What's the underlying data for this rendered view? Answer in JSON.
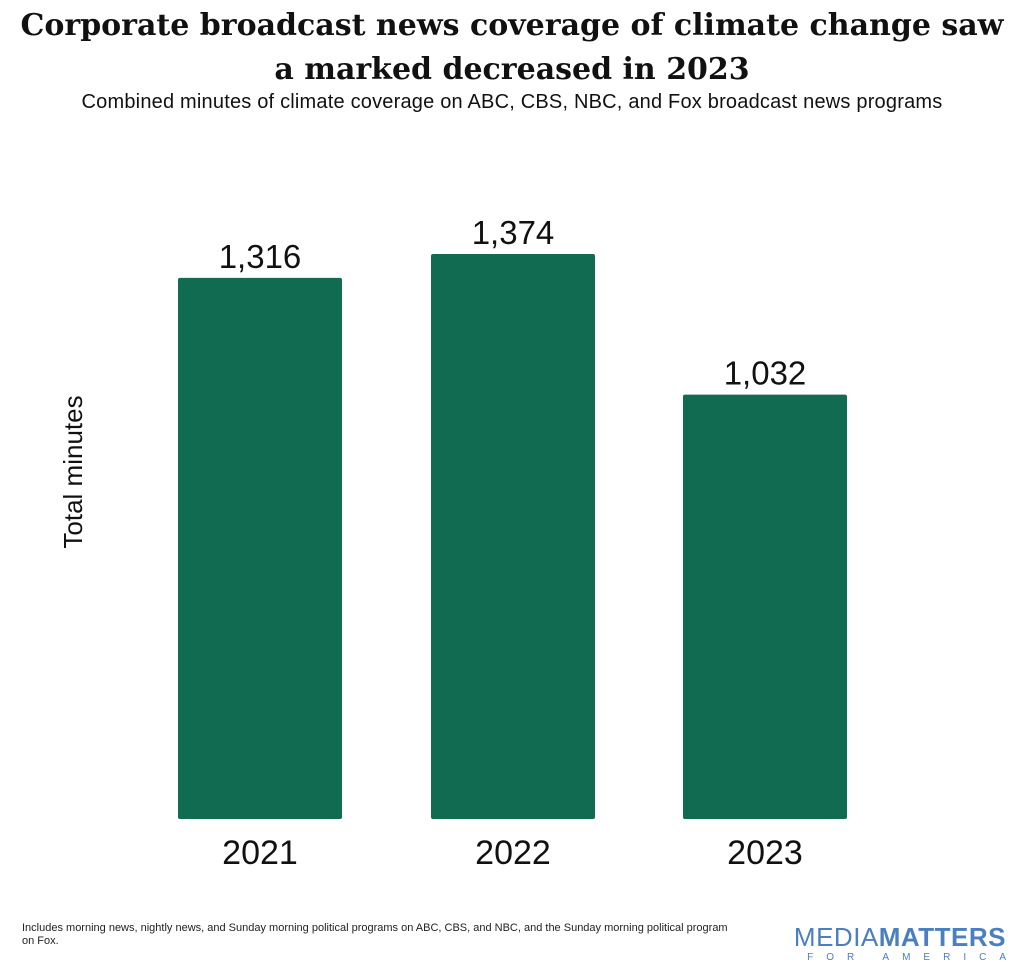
{
  "title_line1": "Corporate broadcast news coverage of climate change saw",
  "title_line2": "a marked decreased in 2023",
  "subtitle": "Combined minutes of climate coverage on ABC, CBS, NBC, and Fox broadcast news programs",
  "footnote": "Includes morning news, nightly news, and Sunday morning political programs on ABC, CBS, and NBC, and the Sunday morning political program on Fox.",
  "brand": {
    "part1": "MEDIA",
    "part2": "MATTERS",
    "sub": "FOR AMERICA"
  },
  "colors": {
    "bar": "#116b51",
    "brand": "#4a7fc1"
  },
  "chart_data": {
    "type": "bar",
    "categories": [
      "2021",
      "2022",
      "2023"
    ],
    "values": [
      1316,
      1374,
      1032
    ],
    "value_labels": [
      "1,316",
      "1,374",
      "1,032"
    ],
    "ylabel": "Total minutes",
    "xlabel": "",
    "ylim": [
      0,
      1374
    ],
    "grid": false,
    "legend": "none"
  }
}
